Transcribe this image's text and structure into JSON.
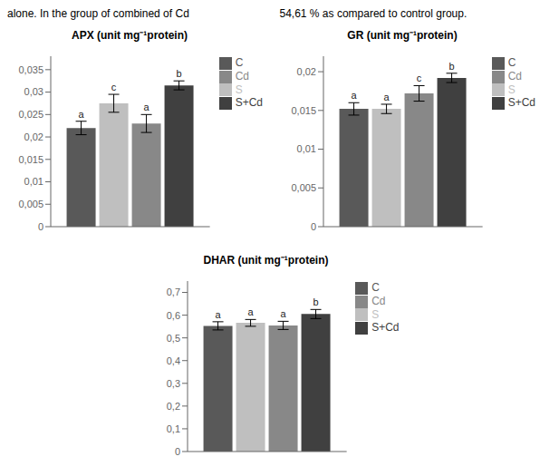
{
  "annotations": [
    "alone.  In the group of combined of Cd",
    "54,61 % as compared to control group."
  ],
  "chart_data": [
    {
      "type": "bar",
      "title": "APX (unit mg⁻¹protein)",
      "categories": [
        "C",
        "S",
        "Cd",
        "S+Cd"
      ],
      "colors": [
        "#595959",
        "#bfbfbf",
        "#888888",
        "#404040"
      ],
      "values": [
        0.022,
        0.0275,
        0.023,
        0.0315
      ],
      "errors": [
        0.0015,
        0.002,
        0.002,
        0.001
      ],
      "annotations": [
        "a",
        "c",
        "a",
        "b"
      ],
      "ylim": [
        0,
        0.038
      ],
      "yticks": [
        0,
        {
          "value": 0.005,
          "label": "0,005"
        },
        {
          "value": 0.01,
          "label": "0,01"
        },
        {
          "value": 0.015,
          "label": "0,015"
        },
        {
          "value": 0.02,
          "label": "0,02"
        },
        {
          "value": 0.025,
          "label": "0,025"
        },
        {
          "value": 0.03,
          "label": "0,03"
        },
        {
          "value": 0.035,
          "label": "0,035"
        }
      ],
      "grid": false,
      "legend": "upper right",
      "tick_labels": "y"
    },
    {
      "type": "bar",
      "title": "GR (unit mg⁻¹protein)",
      "categories": [
        "C",
        "S",
        "Cd",
        "S+Cd"
      ],
      "colors": [
        "#595959",
        "#bfbfbf",
        "#888888",
        "#404040"
      ],
      "values": [
        0.0152,
        0.0152,
        0.0172,
        0.0192
      ],
      "errors": [
        0.0008,
        0.0006,
        0.001,
        0.0006
      ],
      "annotations": [
        "a",
        "a",
        "c",
        "b"
      ],
      "ylim": [
        0,
        0.022
      ],
      "yticks": [
        0,
        {
          "value": 0.005,
          "label": "0,005"
        },
        {
          "value": 0.01,
          "label": "0,01"
        },
        {
          "value": 0.015,
          "label": "0,015"
        },
        {
          "value": 0.02,
          "label": "0,02"
        }
      ],
      "grid": false,
      "legend": "upper right",
      "tick_labels": "y"
    },
    {
      "type": "bar",
      "title": "DHAR (unit mg⁻¹protein)",
      "categories": [
        "C",
        "S",
        "Cd",
        "S+Cd"
      ],
      "colors": [
        "#595959",
        "#bfbfbf",
        "#888888",
        "#404040"
      ],
      "values": [
        0.553,
        0.566,
        0.555,
        0.605
      ],
      "errors": [
        0.018,
        0.015,
        0.018,
        0.02
      ],
      "annotations": [
        "a",
        "a",
        "a",
        "b"
      ],
      "ylim": [
        0,
        0.75
      ],
      "yticks": [
        0,
        {
          "value": 0.1,
          "label": "0,1"
        },
        {
          "value": 0.2,
          "label": "0,2"
        },
        {
          "value": 0.3,
          "label": "0,3"
        },
        {
          "value": 0.4,
          "label": "0,4"
        },
        {
          "value": 0.5,
          "label": "0,5"
        },
        {
          "value": 0.6,
          "label": "0,6"
        },
        {
          "value": 0.7,
          "label": "0,7"
        }
      ],
      "grid": false,
      "legend": "upper right",
      "tick_labels": "y"
    }
  ]
}
